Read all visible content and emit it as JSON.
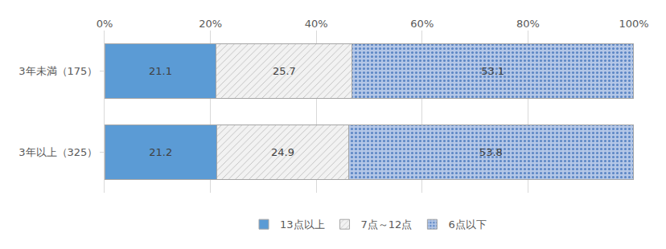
{
  "chart_data": {
    "type": "bar",
    "orientation": "horizontal",
    "stacked": true,
    "data_labels": true,
    "grid": true,
    "legend": "bottom",
    "categories": [
      "3年未満（175）",
      "3年以上（325）"
    ],
    "series": [
      {
        "name": "13点以上",
        "color": "#5B9BD5",
        "values": [
          21.1,
          21.2
        ]
      },
      {
        "name": "7点～12点",
        "color": "#F2F2F2",
        "marker": "hatch",
        "values": [
          25.7,
          24.9
        ]
      },
      {
        "name": "6点以下",
        "color": "#B4C7E7",
        "marker": "dots",
        "values": [
          53.1,
          53.8
        ]
      }
    ],
    "xlim": [
      0,
      100
    ],
    "xticks": [
      {
        "value": 0,
        "label": "0%"
      },
      {
        "value": 20,
        "label": "20%"
      },
      {
        "value": 40,
        "label": "40%"
      },
      {
        "value": 60,
        "label": "60%"
      },
      {
        "value": 80,
        "label": "80%"
      },
      {
        "value": 100,
        "label": "100%"
      }
    ]
  }
}
